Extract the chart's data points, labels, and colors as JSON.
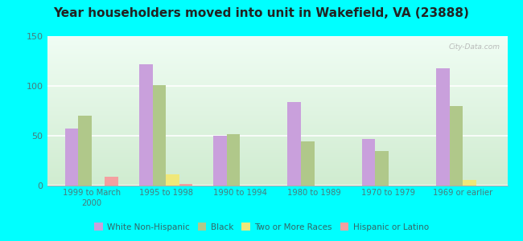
{
  "title": "Year householders moved into unit in Wakefield, VA (23888)",
  "categories": [
    "1999 to March\n2000",
    "1995 to 1998",
    "1990 to 1994",
    "1980 to 1989",
    "1970 to 1979",
    "1969 or earlier"
  ],
  "series": {
    "White Non-Hispanic": [
      57,
      122,
      50,
      84,
      47,
      118
    ],
    "Black": [
      70,
      101,
      52,
      44,
      35,
      80
    ],
    "Two or More Races": [
      0,
      11,
      0,
      0,
      0,
      6
    ],
    "Hispanic or Latino": [
      9,
      2,
      0,
      0,
      0,
      0
    ]
  },
  "colors": {
    "White Non-Hispanic": "#c9a0dc",
    "Black": "#b0c88a",
    "Two or More Races": "#f0e87a",
    "Hispanic or Latino": "#f4a0a0"
  },
  "ylim": [
    0,
    150
  ],
  "yticks": [
    0,
    50,
    100,
    150
  ],
  "outer_bg": "#00ffff",
  "plot_bg_top": "#f0fdf4",
  "plot_bg_bottom": "#d0ecd0",
  "watermark": "City-Data.com",
  "bar_width": 0.18
}
